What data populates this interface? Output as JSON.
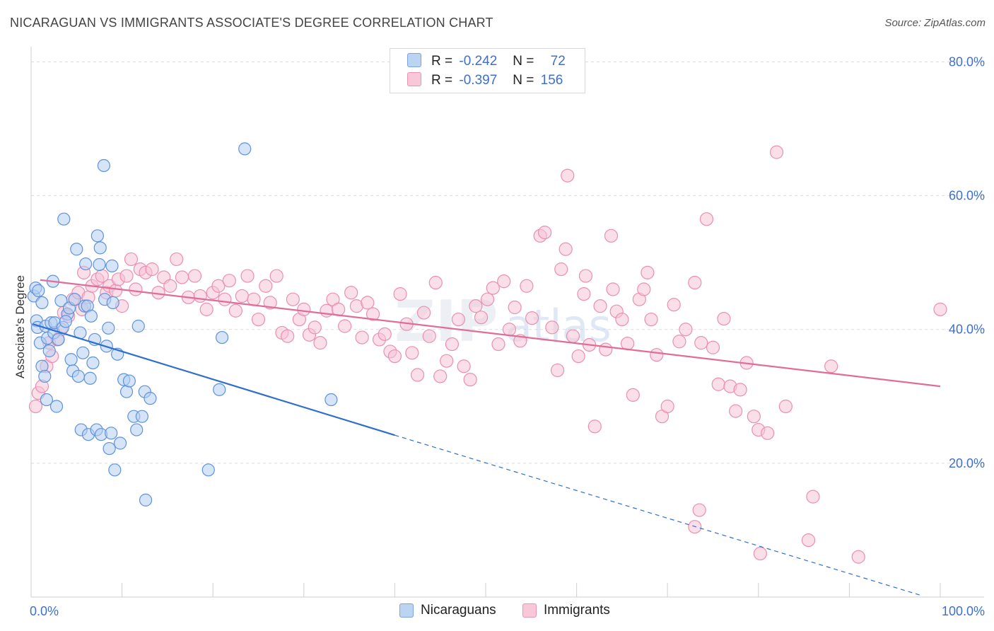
{
  "title": "NICARAGUAN VS IMMIGRANTS ASSOCIATE'S DEGREE CORRELATION CHART",
  "source": "Source: ZipAtlas.com",
  "watermark": "ZIPatlas",
  "legend": {
    "rows": [
      {
        "r_label": "R =",
        "r_value": "-0.242",
        "n_label": "N =",
        "n_value": "72"
      },
      {
        "r_label": "R =",
        "r_value": "-0.397",
        "n_label": "N =",
        "n_value": "156"
      }
    ]
  },
  "bottom_legend": {
    "series1": "Nicaraguans",
    "series2": "Immigrants"
  },
  "chart_data": {
    "type": "scatter",
    "title": "NICARAGUAN VS IMMIGRANTS ASSOCIATE'S DEGREE CORRELATION CHART",
    "xlabel": "",
    "ylabel": "Associate's Degree",
    "xlim": [
      0,
      100
    ],
    "ylim": [
      0,
      81
    ],
    "x_tick_labels": [
      "0.0%",
      "100.0%"
    ],
    "y_ticks": [
      20,
      40,
      60,
      80
    ],
    "y_tick_labels": [
      "20.0%",
      "40.0%",
      "60.0%",
      "80.0%"
    ],
    "grid": true,
    "legend_position": "top-center",
    "colors": {
      "nicaraguans": "#6a9be0",
      "immigrants": "#ee8fb0",
      "blue_line": "#2f6fcc",
      "pink_line": "#e06d98",
      "axis_text": "#3d6fd1"
    },
    "series": [
      {
        "name": "Nicaraguans",
        "color": "#6a9be0",
        "trend": {
          "x0": 0.2,
          "y0": 40.8,
          "x1": 40,
          "y1": 24.2,
          "dashed_to_x": 98,
          "dashed_to_y": 0.2
        },
        "points": [
          [
            0.3,
            45
          ],
          [
            0.5,
            46.2
          ],
          [
            0.6,
            41.3
          ],
          [
            0.7,
            40.3
          ],
          [
            0.8,
            45.8
          ],
          [
            1,
            38
          ],
          [
            1.2,
            44
          ],
          [
            1.2,
            34.5
          ],
          [
            1.5,
            33
          ],
          [
            1.6,
            40.5
          ],
          [
            1.8,
            38.7
          ],
          [
            2,
            36.8
          ],
          [
            2.2,
            41
          ],
          [
            2.4,
            47.2
          ],
          [
            2.5,
            39.5
          ],
          [
            2.6,
            41
          ],
          [
            2.8,
            28.5
          ],
          [
            3,
            38.5
          ],
          [
            3.3,
            44.3
          ],
          [
            3.5,
            40.3
          ],
          [
            3.6,
            56.5
          ],
          [
            4,
            42.3
          ],
          [
            4.2,
            43.2
          ],
          [
            4.4,
            35.5
          ],
          [
            4.6,
            33.8
          ],
          [
            4.8,
            44.5
          ],
          [
            5,
            52
          ],
          [
            5.2,
            33
          ],
          [
            5.4,
            39.5
          ],
          [
            5.5,
            25
          ],
          [
            5.7,
            36.5
          ],
          [
            5.9,
            43.5
          ],
          [
            6,
            49.8
          ],
          [
            6.2,
            43.5
          ],
          [
            6.3,
            24.3
          ],
          [
            6.5,
            32.7
          ],
          [
            6.6,
            42
          ],
          [
            7,
            38.5
          ],
          [
            7.2,
            25
          ],
          [
            7.3,
            54
          ],
          [
            7.5,
            49.7
          ],
          [
            7.6,
            52.2
          ],
          [
            7.7,
            24.3
          ],
          [
            8,
            64.5
          ],
          [
            8.1,
            44.5
          ],
          [
            8.3,
            37.5
          ],
          [
            8.5,
            40.2
          ],
          [
            8.6,
            22.2
          ],
          [
            8.8,
            24.5
          ],
          [
            8.9,
            49.5
          ],
          [
            9.2,
            19
          ],
          [
            9.5,
            36.3
          ],
          [
            9.8,
            23
          ],
          [
            10.2,
            32.5
          ],
          [
            10.5,
            30.7
          ],
          [
            10.8,
            32.3
          ],
          [
            11.3,
            27
          ],
          [
            11.6,
            25
          ],
          [
            11.8,
            40.5
          ],
          [
            12.2,
            27
          ],
          [
            12.5,
            30.7
          ],
          [
            12.6,
            14.5
          ],
          [
            13.1,
            29.7
          ],
          [
            19.5,
            19
          ],
          [
            20.7,
            31
          ],
          [
            21,
            38.8
          ],
          [
            23.5,
            67
          ],
          [
            33,
            29.5
          ],
          [
            1.7,
            29.5
          ],
          [
            3.8,
            41.2
          ],
          [
            6.8,
            35
          ],
          [
            9,
            44
          ]
        ]
      },
      {
        "name": "Immigrants",
        "color": "#ee8fb0",
        "trend": {
          "x0": 1,
          "y0": 47.4,
          "x1": 100,
          "y1": 31.5
        },
        "points": [
          [
            0.5,
            28.5
          ],
          [
            0.8,
            30.5
          ],
          [
            1.2,
            31.5
          ],
          [
            1.7,
            34.5
          ],
          [
            2,
            38
          ],
          [
            2.3,
            36
          ],
          [
            2.9,
            38.5
          ],
          [
            3.3,
            40
          ],
          [
            3.6,
            42.5
          ],
          [
            4.1,
            42
          ],
          [
            4.6,
            44.5
          ],
          [
            5.2,
            45.5
          ],
          [
            5.6,
            43
          ],
          [
            5.8,
            48.5
          ],
          [
            6.3,
            44.8
          ],
          [
            6.7,
            46.5
          ],
          [
            7.3,
            47.5
          ],
          [
            7.8,
            48
          ],
          [
            8.3,
            45.5
          ],
          [
            8.6,
            46.5
          ],
          [
            9.3,
            45.8
          ],
          [
            9.6,
            47.5
          ],
          [
            10,
            43.5
          ],
          [
            10.5,
            48
          ],
          [
            11,
            50.5
          ],
          [
            11.5,
            46
          ],
          [
            12,
            49
          ],
          [
            12.6,
            48.5
          ],
          [
            13.3,
            49
          ],
          [
            14,
            45.5
          ],
          [
            14.6,
            47.8
          ],
          [
            15.3,
            46.5
          ],
          [
            16,
            50.5
          ],
          [
            16.6,
            47.8
          ],
          [
            17.3,
            44.8
          ],
          [
            18,
            48
          ],
          [
            18.6,
            45
          ],
          [
            19.3,
            43
          ],
          [
            20,
            45.5
          ],
          [
            20.6,
            46.5
          ],
          [
            21.3,
            44.5
          ],
          [
            21.8,
            47.3
          ],
          [
            22.5,
            42.8
          ],
          [
            23.2,
            45
          ],
          [
            23.8,
            48
          ],
          [
            24.5,
            44.5
          ],
          [
            25,
            41.5
          ],
          [
            25.8,
            46.5
          ],
          [
            26.3,
            44
          ],
          [
            27,
            48
          ],
          [
            27.6,
            39.5
          ],
          [
            28.2,
            39
          ],
          [
            28.8,
            44.5
          ],
          [
            29.5,
            41.5
          ],
          [
            30,
            43
          ],
          [
            30.6,
            39.2
          ],
          [
            31.2,
            40.3
          ],
          [
            31.8,
            38
          ],
          [
            32.5,
            42.8
          ],
          [
            33.2,
            44.5
          ],
          [
            33.8,
            43
          ],
          [
            34.5,
            40.5
          ],
          [
            35.2,
            45.5
          ],
          [
            35.8,
            43.5
          ],
          [
            36.4,
            38.8
          ],
          [
            37,
            44
          ],
          [
            37.6,
            42.3
          ],
          [
            38.3,
            38.5
          ],
          [
            38.9,
            39.3
          ],
          [
            39.5,
            36.7
          ],
          [
            40,
            36
          ],
          [
            40.6,
            45.3
          ],
          [
            41.3,
            40.8
          ],
          [
            41.9,
            36.5
          ],
          [
            42.5,
            33.2
          ],
          [
            43.2,
            42.5
          ],
          [
            43.8,
            39
          ],
          [
            44.5,
            47
          ],
          [
            45,
            33
          ],
          [
            45.7,
            35.3
          ],
          [
            46.3,
            37.8
          ],
          [
            47,
            41.5
          ],
          [
            47.6,
            34.5
          ],
          [
            48.3,
            32.5
          ],
          [
            48.9,
            43.5
          ],
          [
            49.5,
            41.8
          ],
          [
            50.2,
            44.5
          ],
          [
            50.8,
            46.2
          ],
          [
            51.4,
            37.8
          ],
          [
            52,
            47.2
          ],
          [
            52.6,
            40
          ],
          [
            53.2,
            43.3
          ],
          [
            53.8,
            38.3
          ],
          [
            54.5,
            46.5
          ],
          [
            55.1,
            41.7
          ],
          [
            56,
            54
          ],
          [
            56.5,
            54.5
          ],
          [
            57.3,
            40.3
          ],
          [
            57.9,
            33.9
          ],
          [
            58.3,
            49
          ],
          [
            58.8,
            52
          ],
          [
            59,
            63
          ],
          [
            59.6,
            39
          ],
          [
            60.2,
            36
          ],
          [
            60.8,
            45.3
          ],
          [
            61.4,
            37.7
          ],
          [
            62,
            25.5
          ],
          [
            62.6,
            43.5
          ],
          [
            63.2,
            37
          ],
          [
            63.8,
            54
          ],
          [
            64.4,
            42.7
          ],
          [
            65,
            41.5
          ],
          [
            65.6,
            37.9
          ],
          [
            66.2,
            30.2
          ],
          [
            66.9,
            44.5
          ],
          [
            67.4,
            46
          ],
          [
            67.8,
            48.5
          ],
          [
            68.2,
            41.5
          ],
          [
            68.8,
            36.2
          ],
          [
            69.4,
            27
          ],
          [
            70,
            28.5
          ],
          [
            70.7,
            43.7
          ],
          [
            71.3,
            38.2
          ],
          [
            72,
            40
          ],
          [
            73,
            47
          ],
          [
            73.7,
            38
          ],
          [
            74.3,
            56.5
          ],
          [
            75,
            37.3
          ],
          [
            75.6,
            31.8
          ],
          [
            76.2,
            41.6
          ],
          [
            76.9,
            31.5
          ],
          [
            77.5,
            27.8
          ],
          [
            78,
            31
          ],
          [
            78.7,
            35
          ],
          [
            79.5,
            27
          ],
          [
            80,
            25
          ],
          [
            81,
            24.5
          ],
          [
            82,
            66.5
          ],
          [
            83,
            28.5
          ],
          [
            86,
            15
          ],
          [
            88,
            34.5
          ],
          [
            100,
            43
          ],
          [
            61,
            48
          ],
          [
            64,
            46
          ],
          [
            73.5,
            13
          ],
          [
            73,
            10.5
          ],
          [
            80.2,
            6.5
          ],
          [
            85.5,
            8.5
          ],
          [
            91,
            6
          ]
        ]
      }
    ]
  }
}
